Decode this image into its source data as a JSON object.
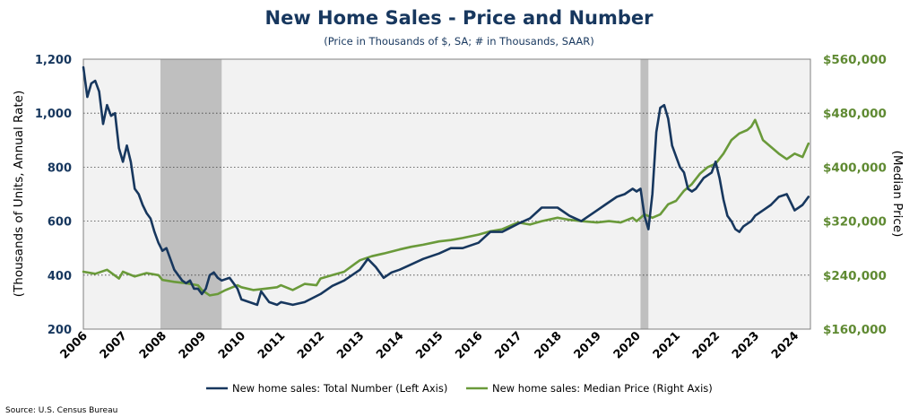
{
  "chart_data": {
    "type": "line",
    "title": "New Home Sales - Price and Number",
    "subtitle": "(Price in Thousands of $, SA; # in Thousands, SAAR)",
    "ylabel_left": "(Thousands of Units, Annual Rate)",
    "ylabel_right": "(Median Price)",
    "ylim_left": [
      200,
      1200
    ],
    "ylim_right": [
      160000,
      560000
    ],
    "xlim": [
      2006.0,
      2024.4
    ],
    "yticks_left": [
      "200",
      "400",
      "600",
      "800",
      "1,000",
      "1,200"
    ],
    "yticks_right": [
      "$160,000",
      "$240,000",
      "$320,000",
      "$400,000",
      "$480,000",
      "$560,000"
    ],
    "xticks": [
      "2006",
      "2007",
      "2008",
      "2009",
      "2010",
      "2011",
      "2012",
      "2013",
      "2014",
      "2015",
      "2016",
      "2017",
      "2018",
      "2019",
      "2020",
      "2021",
      "2022",
      "2023",
      "2024"
    ],
    "recessions": [
      [
        2007.95,
        2009.5
      ],
      [
        2020.1,
        2020.3
      ]
    ],
    "grid": "horizontal-dotted",
    "legend_position": "bottom",
    "source": "Source: U.S. Census Bureau",
    "colors": {
      "number": "#17375e",
      "price": "#6a9a3a",
      "recession": "#bfbfbf",
      "plot_bg": "#f2f2f2"
    },
    "series": [
      {
        "name": "New home sales: Total Number (Left Axis)",
        "axis": "left",
        "x": [
          2006.0,
          2006.1,
          2006.2,
          2006.3,
          2006.4,
          2006.5,
          2006.6,
          2006.7,
          2006.8,
          2006.9,
          2007.0,
          2007.1,
          2007.2,
          2007.3,
          2007.4,
          2007.5,
          2007.6,
          2007.7,
          2007.8,
          2007.9,
          2008.0,
          2008.1,
          2008.2,
          2008.3,
          2008.4,
          2008.5,
          2008.6,
          2008.7,
          2008.8,
          2008.9,
          2009.0,
          2009.1,
          2009.2,
          2009.3,
          2009.4,
          2009.5,
          2009.7,
          2009.9,
          2010.0,
          2010.2,
          2010.4,
          2010.5,
          2010.7,
          2010.9,
          2011.0,
          2011.3,
          2011.6,
          2012.0,
          2012.3,
          2012.6,
          2013.0,
          2013.2,
          2013.4,
          2013.6,
          2013.8,
          2014.0,
          2014.3,
          2014.6,
          2015.0,
          2015.3,
          2015.6,
          2016.0,
          2016.3,
          2016.6,
          2017.0,
          2017.3,
          2017.6,
          2018.0,
          2018.3,
          2018.6,
          2019.0,
          2019.2,
          2019.5,
          2019.7,
          2019.9,
          2020.0,
          2020.1,
          2020.2,
          2020.3,
          2020.4,
          2020.5,
          2020.6,
          2020.7,
          2020.8,
          2020.9,
          2021.0,
          2021.1,
          2021.2,
          2021.3,
          2021.4,
          2021.5,
          2021.7,
          2021.9,
          2022.0,
          2022.1,
          2022.2,
          2022.3,
          2022.4,
          2022.5,
          2022.6,
          2022.7,
          2022.8,
          2022.9,
          2023.0,
          2023.2,
          2023.4,
          2023.6,
          2023.8,
          2024.0,
          2024.2,
          2024.35
        ],
        "values": [
          1170,
          1060,
          1110,
          1120,
          1080,
          960,
          1030,
          990,
          1000,
          870,
          820,
          880,
          820,
          720,
          700,
          660,
          630,
          610,
          560,
          520,
          490,
          500,
          460,
          420,
          400,
          380,
          370,
          380,
          350,
          350,
          330,
          350,
          400,
          410,
          390,
          380,
          390,
          350,
          310,
          300,
          290,
          340,
          300,
          290,
          300,
          290,
          300,
          330,
          360,
          380,
          420,
          460,
          430,
          390,
          410,
          420,
          440,
          460,
          480,
          500,
          500,
          520,
          560,
          560,
          590,
          610,
          650,
          650,
          620,
          600,
          640,
          660,
          690,
          700,
          720,
          710,
          720,
          620,
          570,
          700,
          930,
          1020,
          1030,
          980,
          880,
          840,
          800,
          780,
          720,
          710,
          720,
          760,
          780,
          820,
          760,
          680,
          620,
          600,
          570,
          560,
          580,
          590,
          600,
          620,
          640,
          660,
          690,
          700,
          640,
          660,
          690
        ]
      },
      {
        "name": "New home sales: Median Price (Right Axis)",
        "axis": "right",
        "x": [
          2006.0,
          2006.3,
          2006.6,
          2006.9,
          2007.0,
          2007.3,
          2007.6,
          2007.9,
          2008.0,
          2008.3,
          2008.6,
          2008.9,
          2009.0,
          2009.2,
          2009.4,
          2009.6,
          2009.9,
          2010.0,
          2010.3,
          2010.6,
          2010.9,
          2011.0,
          2011.3,
          2011.6,
          2011.9,
          2012.0,
          2012.3,
          2012.6,
          2012.9,
          2013.0,
          2013.3,
          2013.6,
          2014.0,
          2014.3,
          2014.6,
          2015.0,
          2015.3,
          2015.6,
          2016.0,
          2016.3,
          2016.6,
          2017.0,
          2017.3,
          2017.6,
          2018.0,
          2018.3,
          2018.6,
          2019.0,
          2019.3,
          2019.6,
          2019.9,
          2020.0,
          2020.2,
          2020.4,
          2020.6,
          2020.8,
          2021.0,
          2021.2,
          2021.4,
          2021.6,
          2021.8,
          2022.0,
          2022.2,
          2022.4,
          2022.6,
          2022.8,
          2022.9,
          2023.0,
          2023.2,
          2023.4,
          2023.6,
          2023.8,
          2024.0,
          2024.2,
          2024.35
        ],
        "values": [
          245000,
          242000,
          248000,
          235000,
          245000,
          238000,
          243000,
          240000,
          233000,
          230000,
          228000,
          225000,
          218000,
          210000,
          212000,
          218000,
          225000,
          222000,
          218000,
          220000,
          222000,
          225000,
          218000,
          227000,
          225000,
          235000,
          240000,
          245000,
          258000,
          262000,
          268000,
          272000,
          278000,
          282000,
          285000,
          290000,
          292000,
          295000,
          300000,
          305000,
          308000,
          318000,
          315000,
          320000,
          325000,
          322000,
          320000,
          318000,
          320000,
          318000,
          325000,
          320000,
          330000,
          325000,
          330000,
          345000,
          350000,
          365000,
          375000,
          390000,
          400000,
          405000,
          420000,
          440000,
          450000,
          455000,
          460000,
          470000,
          440000,
          430000,
          420000,
          412000,
          420000,
          415000,
          435000
        ]
      }
    ]
  }
}
